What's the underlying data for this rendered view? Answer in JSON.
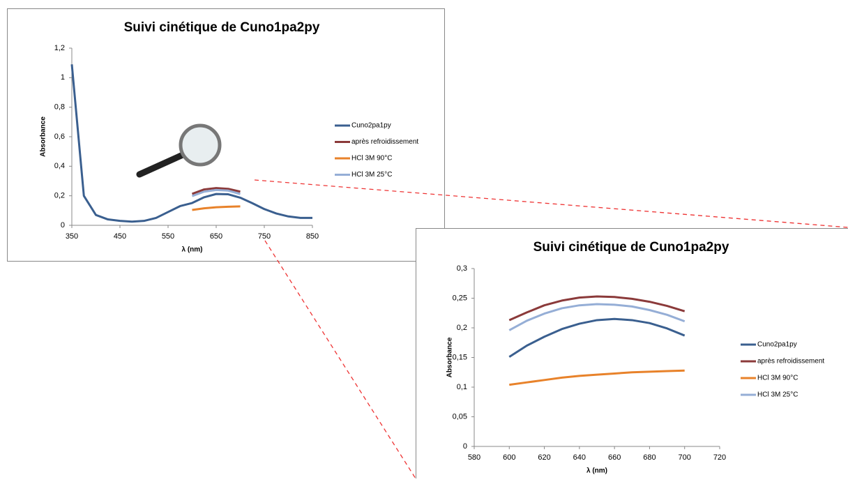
{
  "chart_data": [
    {
      "type": "line",
      "title": "Suivi cinétique de Cuno1pa2py",
      "x_label": "λ (nm)",
      "y_label": "Absorbance",
      "x": [
        350,
        375,
        400,
        425,
        450,
        475,
        500,
        525,
        550,
        575,
        600,
        625,
        650,
        675,
        700,
        725,
        750,
        775,
        800,
        825,
        850
      ],
      "xlim": [
        350,
        850
      ],
      "xticks": [
        350,
        450,
        550,
        650,
        750,
        850
      ],
      "ylim": [
        0,
        1.2
      ],
      "yticks": [
        0,
        {
          "value": 0.2,
          "label": "0,2"
        },
        {
          "value": 0.4,
          "label": "0,4"
        },
        {
          "value": 0.6,
          "label": "0,6"
        },
        {
          "value": 0.8,
          "label": "0,8"
        },
        1,
        {
          "value": 1.2,
          "label": "1,2"
        }
      ],
      "series": [
        {
          "name": "Cuno2pa1py",
          "color": "#3a5f8f",
          "values": [
            1.09,
            0.2,
            0.07,
            0.04,
            0.03,
            0.025,
            0.03,
            0.05,
            0.09,
            0.13,
            0.151,
            0.19,
            0.212,
            0.21,
            0.187,
            0.15,
            0.11,
            0.08,
            0.06,
            0.05,
            0.05
          ]
        },
        {
          "name": "après refroidissement",
          "color": "#8b3a3a",
          "values": [
            null,
            null,
            null,
            null,
            null,
            null,
            null,
            null,
            null,
            null,
            0.213,
            0.243,
            0.252,
            0.247,
            0.228,
            null,
            null,
            null,
            null,
            null,
            null
          ]
        },
        {
          "name": "HCl 3M 90°C",
          "color": "#e8822a",
          "values": [
            null,
            null,
            null,
            null,
            null,
            null,
            null,
            null,
            null,
            null,
            0.104,
            0.115,
            0.122,
            0.126,
            0.128,
            null,
            null,
            null,
            null,
            null,
            null
          ]
        },
        {
          "name": "HCl 3M 25°C",
          "color": "#95aed6",
          "values": [
            null,
            null,
            null,
            null,
            null,
            null,
            null,
            null,
            null,
            null,
            0.198,
            0.228,
            0.239,
            0.235,
            0.212,
            null,
            null,
            null,
            null,
            null,
            null
          ]
        }
      ]
    },
    {
      "type": "line",
      "title": "Suivi cinétique de Cuno1pa2py",
      "x_label": "λ (nm)",
      "y_label": "Absorbance",
      "x": [
        600,
        610,
        620,
        630,
        640,
        650,
        660,
        670,
        680,
        690,
        700
      ],
      "xlim": [
        580,
        720
      ],
      "xticks": [
        580,
        600,
        620,
        640,
        660,
        680,
        700,
        720
      ],
      "ylim": [
        0,
        0.3
      ],
      "yticks": [
        0,
        {
          "value": 0.05,
          "label": "0,05"
        },
        {
          "value": 0.1,
          "label": "0,1"
        },
        {
          "value": 0.15,
          "label": "0,15"
        },
        {
          "value": 0.2,
          "label": "0,2"
        },
        {
          "value": 0.25,
          "label": "0,25"
        },
        {
          "value": 0.3,
          "label": "0,3"
        }
      ],
      "series": [
        {
          "name": "Cuno2pa1py",
          "color": "#3a5f8f",
          "values": [
            0.151,
            0.17,
            0.185,
            0.198,
            0.207,
            0.213,
            0.215,
            0.213,
            0.208,
            0.199,
            0.187
          ]
        },
        {
          "name": "après refroidissement",
          "color": "#8b3a3a",
          "values": [
            0.213,
            0.226,
            0.238,
            0.246,
            0.251,
            0.253,
            0.252,
            0.249,
            0.244,
            0.237,
            0.228
          ]
        },
        {
          "name": "HCl 3M 90°C",
          "color": "#e8822a",
          "values": [
            0.104,
            0.108,
            0.112,
            0.116,
            0.119,
            0.121,
            0.123,
            0.125,
            0.126,
            0.127,
            0.128
          ]
        },
        {
          "name": "HCl 3M 25°C",
          "color": "#95aed6",
          "values": [
            0.196,
            0.212,
            0.224,
            0.233,
            0.238,
            0.24,
            0.239,
            0.236,
            0.23,
            0.222,
            0.211
          ]
        }
      ]
    }
  ]
}
